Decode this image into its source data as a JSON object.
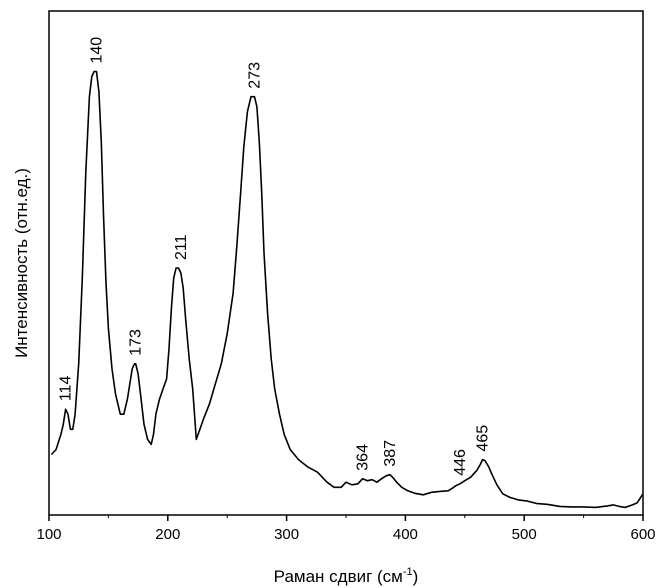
{
  "chart_data": {
    "type": "line",
    "title": "",
    "xlabel": "Раман сдвиг (см",
    "xlabel_sup": "-1",
    "xlabel_close": ")",
    "ylabel": "Интенсивность (отн.ед.)",
    "xlim": [
      100,
      600
    ],
    "ylim": [
      0,
      100
    ],
    "y_ticks_labeled": false,
    "grid": false,
    "legend": "none",
    "line_color": "#000000",
    "x_ticks": [
      100,
      200,
      300,
      400,
      500,
      600
    ],
    "x_tick_labels": [
      "100",
      "200",
      "300",
      "400",
      "500",
      "600"
    ],
    "peak_labels": [
      {
        "text": "114",
        "x": 114,
        "y": 21
      },
      {
        "text": "140",
        "x": 140,
        "y": 88
      },
      {
        "text": "173",
        "x": 173,
        "y": 30
      },
      {
        "text": "211",
        "x": 211,
        "y": 49
      },
      {
        "text": "273",
        "x": 273,
        "y": 83
      },
      {
        "text": "364",
        "x": 364,
        "y": 7.2
      },
      {
        "text": "387",
        "x": 387,
        "y": 8.0
      },
      {
        "text": "446",
        "x": 446,
        "y": 6.2
      },
      {
        "text": "465",
        "x": 465,
        "y": 11.0
      }
    ],
    "series": [
      {
        "x": [
          102,
          106,
          110,
          112,
          114,
          116,
          118,
          120,
          122,
          125,
          128,
          131,
          134,
          136,
          138,
          140,
          142,
          144,
          146,
          148,
          150,
          153,
          156,
          160,
          163,
          166,
          168,
          170,
          172,
          173,
          175,
          177,
          180,
          183,
          186,
          188,
          190,
          193,
          196,
          199,
          201,
          203,
          205,
          207,
          209,
          211,
          213,
          215,
          218,
          221,
          224,
          227,
          230,
          235,
          240,
          245,
          250,
          255,
          258,
          261,
          264,
          267,
          270,
          272,
          273,
          275,
          277,
          279,
          281,
          284,
          287,
          290,
          294,
          298,
          303,
          310,
          318,
          326,
          334,
          340,
          346,
          350,
          355,
          360,
          364,
          368,
          372,
          376,
          380,
          384,
          387,
          390,
          393,
          397,
          402,
          408,
          415,
          422,
          430,
          436,
          440,
          443,
          446,
          450,
          455,
          460,
          463,
          465,
          467,
          470,
          473,
          477,
          482,
          488,
          495,
          502,
          510,
          520,
          530,
          540,
          550,
          560,
          570,
          575,
          580,
          585,
          590,
          595,
          600
        ],
        "y": [
          12,
          13,
          16,
          18,
          21,
          20,
          17,
          17,
          20,
          30,
          47,
          68,
          83,
          87,
          88,
          88,
          84,
          74,
          59,
          46,
          37,
          29,
          24,
          20,
          20,
          23,
          26,
          29,
          30,
          30,
          28,
          24,
          18,
          15,
          14,
          16,
          20,
          23,
          25,
          27,
          33,
          41,
          47,
          49,
          49,
          48,
          45,
          39,
          31,
          25,
          15,
          17,
          19,
          22,
          26,
          30,
          36,
          44,
          53,
          63,
          73,
          80,
          83,
          83,
          83,
          81,
          74,
          64,
          52,
          40,
          31,
          25,
          20,
          16,
          13,
          11,
          9.5,
          8.5,
          6.5,
          5.5,
          5.5,
          6.5,
          6.0,
          6.2,
          7.2,
          6.8,
          7.0,
          6.5,
          7.2,
          7.8,
          8.0,
          7.3,
          6.4,
          5.5,
          4.8,
          4.3,
          4.0,
          4.5,
          4.7,
          4.8,
          5.4,
          5.9,
          6.2,
          6.8,
          7.5,
          8.8,
          10.0,
          11.0,
          10.8,
          9.6,
          8.0,
          6.0,
          4.2,
          3.5,
          3.0,
          2.8,
          2.3,
          2.1,
          1.7,
          1.6,
          1.6,
          1.5,
          1.8,
          2.0,
          1.7,
          1.5,
          1.9,
          2.4,
          4.2
        ]
      }
    ]
  }
}
